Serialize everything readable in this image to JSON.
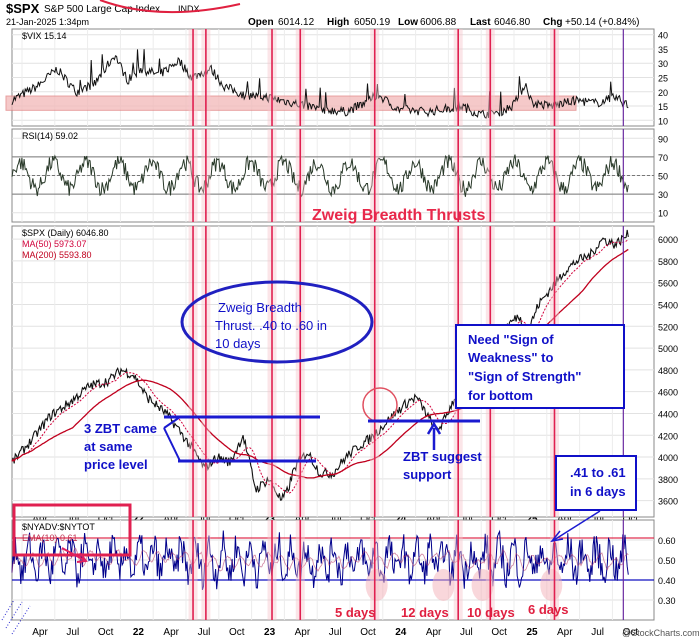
{
  "header": {
    "symbol": "$SPX",
    "name": "S&P 500 Large Cap Index",
    "exchange": "INDX",
    "date": "21-Jan-2025 1:34pm",
    "quote": {
      "open_label": "Open",
      "open": "6014.12",
      "high_label": "High",
      "high": "6050.19",
      "low_label": "Low",
      "low": "6006.88",
      "last_label": "Last",
      "last": "6046.80",
      "chg_label": "Chg",
      "chg": "+50.14 (+0.84%)"
    },
    "watermark": "@StockCharts.com"
  },
  "colors": {
    "price": "#000000",
    "ma50": "#d0003a",
    "ma200": "#c0001e",
    "band": "#f2b8b8",
    "zbt_line": "#e02050",
    "ann_blue": "#1010c8",
    "ann_red": "#e8284a",
    "nyadv": "#00008b"
  },
  "chart_data": [
    {
      "type": "line",
      "panel": "vix",
      "legend": "$VIX 15.14",
      "y_ticks": [
        "40",
        "35",
        "30",
        "25",
        "20",
        "15",
        "10"
      ],
      "ylim": [
        8,
        42
      ],
      "shaded_band": [
        13.5,
        18.5
      ],
      "anchors": [
        [
          0,
          17
        ],
        [
          0.04,
          22
        ],
        [
          0.07,
          28
        ],
        [
          0.1,
          20
        ],
        [
          0.13,
          23
        ],
        [
          0.16,
          33
        ],
        [
          0.18,
          24
        ],
        [
          0.2,
          28
        ],
        [
          0.23,
          26
        ],
        [
          0.26,
          31
        ],
        [
          0.28,
          25
        ],
        [
          0.31,
          28
        ],
        [
          0.33,
          22
        ],
        [
          0.36,
          19
        ],
        [
          0.4,
          18
        ],
        [
          0.44,
          16
        ],
        [
          0.48,
          14
        ],
        [
          0.52,
          13
        ],
        [
          0.55,
          16
        ],
        [
          0.57,
          19
        ],
        [
          0.6,
          14
        ],
        [
          0.65,
          13
        ],
        [
          0.7,
          15
        ],
        [
          0.73,
          12
        ],
        [
          0.76,
          13
        ],
        [
          0.78,
          15
        ],
        [
          0.8,
          23
        ],
        [
          0.81,
          16
        ],
        [
          0.84,
          15
        ],
        [
          0.88,
          17
        ],
        [
          0.91,
          16
        ],
        [
          0.94,
          18
        ],
        [
          0.96,
          15.14
        ]
      ]
    },
    {
      "type": "line",
      "panel": "rsi",
      "legend": "RSI(14) 59.02",
      "y_ticks": [
        "90",
        "70",
        "50",
        "30",
        "10"
      ],
      "ylim": [
        0,
        100
      ],
      "ref_lines": [
        70,
        50,
        30
      ]
    },
    {
      "type": "line",
      "panel": "price",
      "title": "Zweig Breadth Thrusts",
      "legend": [
        "$SPX (Daily) 6046.80",
        "MA(50) 5973.07",
        "MA(200) 5593.80"
      ],
      "y_ticks": [
        "6000",
        "5800",
        "5600",
        "5400",
        "5200",
        "5000",
        "4800",
        "4600",
        "4400",
        "4200",
        "4000",
        "3800",
        "3600"
      ],
      "ylim": [
        3450,
        6120
      ],
      "anchors": [
        [
          0,
          3950
        ],
        [
          0.03,
          4150
        ],
        [
          0.06,
          4380
        ],
        [
          0.09,
          4500
        ],
        [
          0.12,
          4650
        ],
        [
          0.15,
          4700
        ],
        [
          0.17,
          4800
        ],
        [
          0.19,
          4750
        ],
        [
          0.21,
          4550
        ],
        [
          0.24,
          4400
        ],
        [
          0.26,
          4250
        ],
        [
          0.28,
          4080
        ],
        [
          0.3,
          3900
        ],
        [
          0.32,
          4000
        ],
        [
          0.34,
          3950
        ],
        [
          0.36,
          4200
        ],
        [
          0.38,
          3700
        ],
        [
          0.4,
          3800
        ],
        [
          0.42,
          3600
        ],
        [
          0.43,
          3700
        ],
        [
          0.44,
          3900
        ],
        [
          0.46,
          4050
        ],
        [
          0.48,
          3850
        ],
        [
          0.5,
          3850
        ],
        [
          0.52,
          4000
        ],
        [
          0.54,
          4100
        ],
        [
          0.56,
          4180
        ],
        [
          0.58,
          4300
        ],
        [
          0.6,
          4420
        ],
        [
          0.62,
          4520
        ],
        [
          0.63,
          4550
        ],
        [
          0.65,
          4350
        ],
        [
          0.66,
          4250
        ],
        [
          0.67,
          4300
        ],
        [
          0.69,
          4550
        ],
        [
          0.71,
          4750
        ],
        [
          0.73,
          4900
        ],
        [
          0.75,
          5050
        ],
        [
          0.77,
          5200
        ],
        [
          0.79,
          5300
        ],
        [
          0.8,
          5100
        ],
        [
          0.82,
          5400
        ],
        [
          0.84,
          5550
        ],
        [
          0.86,
          5700
        ],
        [
          0.88,
          5800
        ],
        [
          0.9,
          5850
        ],
        [
          0.92,
          6000
        ],
        [
          0.94,
          5950
        ],
        [
          0.96,
          6046.8
        ]
      ]
    },
    {
      "type": "line",
      "panel": "breadth",
      "legend": [
        "$NYADV:$NYTOT",
        "EMA(10) 0.61"
      ],
      "y_ticks": [
        "0.60",
        "0.50",
        "0.40",
        "0.30"
      ],
      "ylim": [
        0.2,
        0.7
      ],
      "ref_lines": [
        0.61,
        0.4
      ]
    }
  ],
  "x_axis": {
    "top": [
      "Apr",
      "Jul",
      "Oct",
      "22",
      "Apr",
      "Jul",
      "Oct",
      "23",
      "Apr",
      "Jul",
      "Oct",
      "24",
      "Apr",
      "Jul",
      "Oct",
      "25",
      "Apr",
      "Jul",
      "Oct"
    ],
    "bottom": [
      "Apr",
      "Jul",
      "Oct",
      "22",
      "Apr",
      "Jul",
      "Oct",
      "23",
      "Apr",
      "Jul",
      "Oct",
      "24",
      "Apr",
      "Jul",
      "Oct",
      "25",
      "Apr",
      "Jul",
      "Oct"
    ]
  },
  "annotations": {
    "zbt_box": [
      "Zweig Breadth",
      "Thrust. .40 to .60 in",
      "10 days"
    ],
    "three_zbt": [
      "3 ZBT came",
      "at same",
      "price level"
    ],
    "need_sign": [
      "Need \"Sign of",
      "Weakness\" to",
      "\"Sign of Strength\"",
      "for bottom"
    ],
    "zbt_support": [
      "ZBT suggest",
      "support"
    ],
    "six_days_box": [
      ".41 to .61",
      "in 6 days"
    ],
    "counts": [
      "5 days",
      "12 days",
      "10 days",
      "6 days"
    ]
  }
}
